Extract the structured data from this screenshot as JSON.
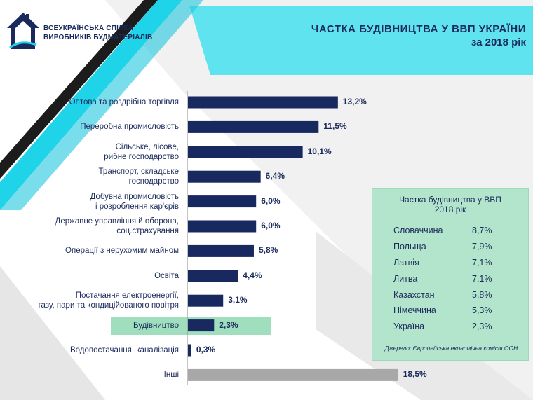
{
  "header": {
    "org_line1": "ВСЕУКРАЇНСЬКА СПІЛКА",
    "org_line2": "ВИРОБНИКІВ БУДМАТЕРІАЛІВ",
    "title_line1": "ЧАСТКА БУДІВНИЦТВА У ВВП УКРАЇНИ",
    "title_line2": "за 2018 рік"
  },
  "colors": {
    "bar": "#17295e",
    "bar_other": "#a8a8a8",
    "accent_cyan": "#1fd3e8",
    "highlight": "#8fd9b3",
    "panel": "#b2e5cb"
  },
  "chart_data": {
    "type": "bar",
    "orientation": "horizontal",
    "categories": [
      "Оптова та роздрібна торгівля",
      "Переробна промисловість",
      "Сільське, лісове,\nрибне господарство",
      "Транспорт, складське\nгосподарство",
      "Добувна промисловість\nі розроблення кар'єрів",
      "Державне управління й оборона,\nсоц.страхування",
      "Операції з нерухомим майном",
      "Освіта",
      "Постачання електроенергії,\nгазу, пари та кондиційованого повітря",
      "Будівництво",
      "Водопостачання, каналізація",
      "Інші"
    ],
    "values": [
      13.2,
      11.5,
      10.1,
      6.4,
      6.0,
      6.0,
      5.8,
      4.4,
      3.1,
      2.3,
      0.3,
      18.5
    ],
    "value_labels": [
      "13,2%",
      "11,5%",
      "10,1%",
      "6,4%",
      "6,0%",
      "6,0%",
      "5,8%",
      "4,4%",
      "3,1%",
      "2,3%",
      "0,3%",
      "18,5%"
    ],
    "highlighted_category": "Будівництво",
    "other_category": "Інші",
    "title": "ЧАСТКА БУДІВНИЦТВА У ВВП УКРАЇНИ за 2018 рік",
    "xlim": [
      0,
      20
    ]
  },
  "side_panel": {
    "title": "Частка будівництва у ВВП\n2018 рік",
    "rows": [
      {
        "country": "Словаччина",
        "value": "8,7%"
      },
      {
        "country": "Польща",
        "value": "7,9%"
      },
      {
        "country": "Латвія",
        "value": "7,1%"
      },
      {
        "country": "Литва",
        "value": "7,1%"
      },
      {
        "country": "Казахстан",
        "value": "5,8%"
      },
      {
        "country": "Німеччина",
        "value": "5,3%"
      },
      {
        "country": "Україна",
        "value": "2,3%"
      }
    ],
    "source": "Джерело: Європейська економічна комісія ООН"
  }
}
